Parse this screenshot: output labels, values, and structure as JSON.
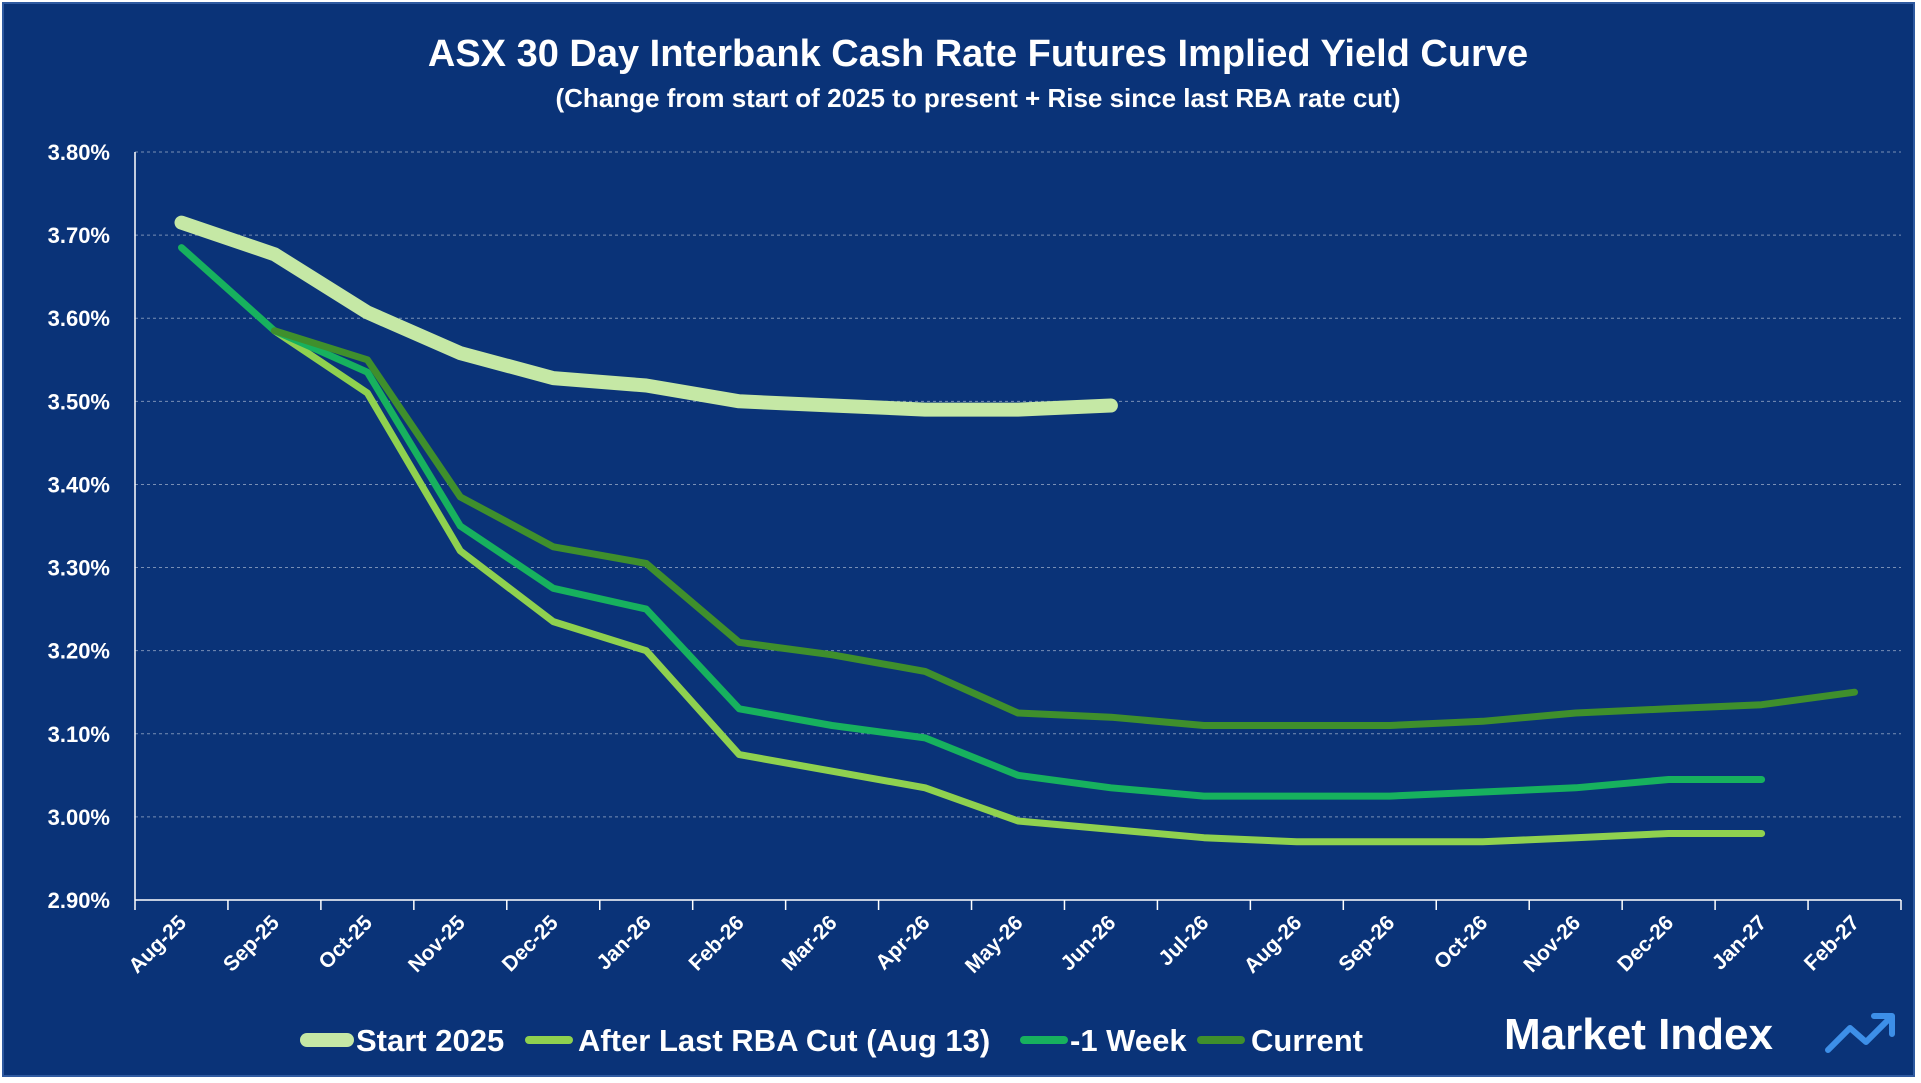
{
  "chart_data": {
    "type": "line",
    "title": "ASX 30 Day Interbank Cash Rate Futures Implied Yield Curve",
    "subtitle": "(Change from start of 2025 to present + Rise since last RBA rate cut)",
    "categories": [
      "Aug-25",
      "Sep-25",
      "Oct-25",
      "Nov-25",
      "Dec-25",
      "Jan-26",
      "Feb-26",
      "Mar-26",
      "Apr-26",
      "May-26",
      "Jun-26",
      "Jul-26",
      "Aug-26",
      "Sep-26",
      "Oct-26",
      "Nov-26",
      "Dec-26",
      "Jan-27",
      "Feb-27"
    ],
    "y_ticks": [
      "3.80%",
      "3.70%",
      "3.60%",
      "3.50%",
      "3.40%",
      "3.30%",
      "3.20%",
      "3.10%",
      "3.00%",
      "2.90%"
    ],
    "ylim": [
      2.9,
      3.8
    ],
    "ylabel": "",
    "xlabel": "",
    "grid": true,
    "legend_position": "bottom",
    "series": [
      {
        "name": "Start 2025",
        "color": "#c5e8a5",
        "values": [
          3.715,
          3.677,
          3.607,
          3.558,
          3.528,
          3.519,
          3.5,
          3.495,
          3.49,
          3.49,
          3.495,
          null,
          null,
          null,
          null,
          null,
          null,
          null,
          null
        ]
      },
      {
        "name": "After Last RBA Cut (Aug 13)",
        "color": "#8fd14f",
        "values": [
          null,
          3.585,
          3.51,
          3.32,
          3.235,
          3.2,
          3.075,
          3.055,
          3.035,
          2.995,
          2.985,
          2.975,
          2.97,
          2.97,
          2.97,
          2.975,
          2.98,
          2.98,
          null
        ]
      },
      {
        "name": "-1 Week",
        "color": "#17b15e",
        "values": [
          3.685,
          3.585,
          3.535,
          3.35,
          3.275,
          3.25,
          3.13,
          3.11,
          3.095,
          3.05,
          3.035,
          3.025,
          3.025,
          3.025,
          3.03,
          3.035,
          3.045,
          3.045,
          null
        ]
      },
      {
        "name": "Current",
        "color": "#3f8f2c",
        "values": [
          null,
          3.585,
          3.55,
          3.385,
          3.325,
          3.305,
          3.21,
          3.195,
          3.175,
          3.125,
          3.12,
          3.11,
          3.11,
          3.11,
          3.115,
          3.125,
          3.13,
          3.135,
          3.15
        ]
      }
    ]
  },
  "brand": {
    "name": "Market Index",
    "icon": "trend-arrow-icon",
    "accent_color": "#3d8fe8"
  }
}
